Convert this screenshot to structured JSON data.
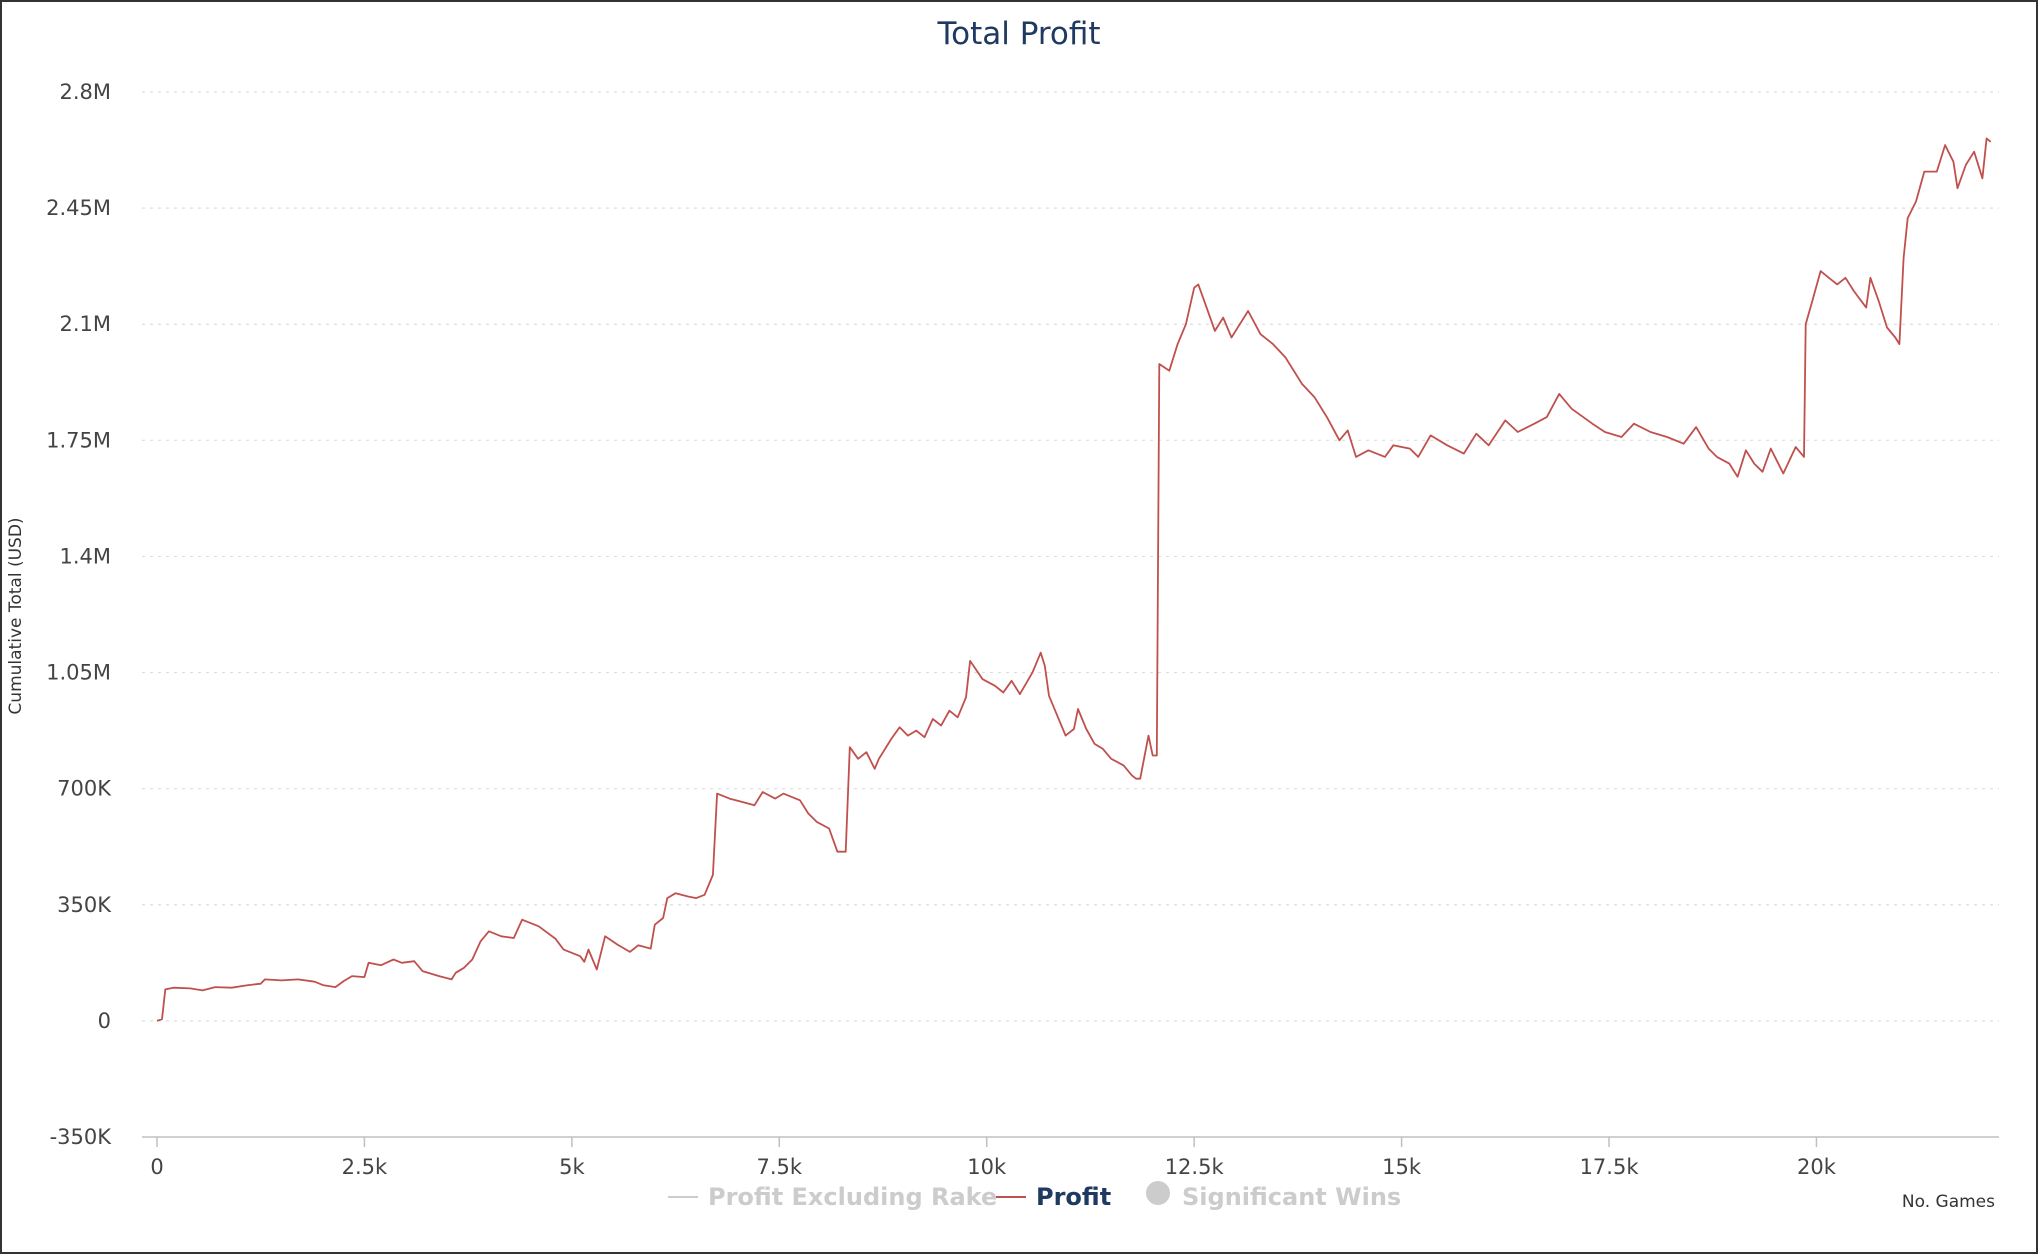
{
  "chart_data": {
    "type": "line",
    "title": "Total Profit",
    "xlabel": "No. Games",
    "ylabel": "Cumulative Total (USD)",
    "xlim": [
      0,
      22200
    ],
    "ylim": [
      -350000,
      2800000
    ],
    "x_ticks": [
      0,
      2500,
      5000,
      7500,
      10000,
      12500,
      15000,
      17500,
      20000
    ],
    "x_tick_labels": [
      "0",
      "2.5k",
      "5k",
      "7.5k",
      "10k",
      "12.5k",
      "15k",
      "17.5k",
      "20k"
    ],
    "y_ticks": [
      -350000,
      0,
      350000,
      700000,
      1050000,
      1400000,
      1750000,
      2100000,
      2450000,
      2800000
    ],
    "y_tick_labels": [
      "-350K",
      "0",
      "350K",
      "700K",
      "1.05M",
      "1.4M",
      "1.75M",
      "2.1M",
      "2.45M",
      "2.8M"
    ],
    "grid": "horizontal dotted",
    "legend_position": "bottom-center",
    "legend": [
      {
        "label": "Profit Excluding Rake",
        "color": "#cccccc",
        "marker": "line",
        "active": false
      },
      {
        "label": "Profit",
        "color": "#c0504d",
        "marker": "line",
        "active": true
      },
      {
        "label": "Significant Wins",
        "color": "#cccccc",
        "marker": "circle",
        "active": false
      }
    ],
    "series": [
      {
        "name": "Profit",
        "color": "#c0504d",
        "points": [
          [
            0,
            0
          ],
          [
            60,
            5000
          ],
          [
            100,
            95000
          ],
          [
            200,
            100000
          ],
          [
            400,
            98000
          ],
          [
            550,
            92000
          ],
          [
            700,
            102000
          ],
          [
            900,
            100000
          ],
          [
            1100,
            108000
          ],
          [
            1250,
            112000
          ],
          [
            1300,
            125000
          ],
          [
            1500,
            122000
          ],
          [
            1700,
            125000
          ],
          [
            1900,
            118000
          ],
          [
            2000,
            108000
          ],
          [
            2150,
            102000
          ],
          [
            2250,
            120000
          ],
          [
            2350,
            135000
          ],
          [
            2500,
            132000
          ],
          [
            2550,
            175000
          ],
          [
            2700,
            168000
          ],
          [
            2850,
            185000
          ],
          [
            2950,
            175000
          ],
          [
            3100,
            180000
          ],
          [
            3200,
            150000
          ],
          [
            3400,
            135000
          ],
          [
            3550,
            125000
          ],
          [
            3600,
            145000
          ],
          [
            3700,
            160000
          ],
          [
            3800,
            185000
          ],
          [
            3900,
            240000
          ],
          [
            4000,
            270000
          ],
          [
            4150,
            255000
          ],
          [
            4300,
            250000
          ],
          [
            4400,
            305000
          ],
          [
            4600,
            285000
          ],
          [
            4800,
            248000
          ],
          [
            4900,
            215000
          ],
          [
            5100,
            195000
          ],
          [
            5150,
            178000
          ],
          [
            5200,
            215000
          ],
          [
            5300,
            155000
          ],
          [
            5400,
            255000
          ],
          [
            5550,
            230000
          ],
          [
            5700,
            208000
          ],
          [
            5800,
            228000
          ],
          [
            5950,
            218000
          ],
          [
            6000,
            290000
          ],
          [
            6100,
            310000
          ],
          [
            6150,
            370000
          ],
          [
            6250,
            385000
          ],
          [
            6400,
            375000
          ],
          [
            6500,
            370000
          ],
          [
            6600,
            380000
          ],
          [
            6700,
            440000
          ],
          [
            6750,
            685000
          ],
          [
            6900,
            670000
          ],
          [
            7050,
            660000
          ],
          [
            7200,
            650000
          ],
          [
            7300,
            690000
          ],
          [
            7450,
            670000
          ],
          [
            7550,
            685000
          ],
          [
            7750,
            665000
          ],
          [
            7850,
            625000
          ],
          [
            7950,
            600000
          ],
          [
            8100,
            580000
          ],
          [
            8200,
            510000
          ],
          [
            8300,
            510000
          ],
          [
            8350,
            825000
          ],
          [
            8450,
            790000
          ],
          [
            8550,
            810000
          ],
          [
            8650,
            760000
          ],
          [
            8700,
            790000
          ],
          [
            8850,
            850000
          ],
          [
            8950,
            885000
          ],
          [
            9050,
            860000
          ],
          [
            9150,
            875000
          ],
          [
            9250,
            855000
          ],
          [
            9350,
            910000
          ],
          [
            9450,
            890000
          ],
          [
            9550,
            935000
          ],
          [
            9650,
            915000
          ],
          [
            9750,
            975000
          ],
          [
            9800,
            1085000
          ],
          [
            9950,
            1030000
          ],
          [
            10100,
            1010000
          ],
          [
            10200,
            990000
          ],
          [
            10300,
            1025000
          ],
          [
            10400,
            985000
          ],
          [
            10550,
            1050000
          ],
          [
            10650,
            1110000
          ],
          [
            10700,
            1070000
          ],
          [
            10750,
            980000
          ],
          [
            10850,
            920000
          ],
          [
            10950,
            860000
          ],
          [
            11050,
            880000
          ],
          [
            11100,
            940000
          ],
          [
            11200,
            880000
          ],
          [
            11300,
            835000
          ],
          [
            11400,
            820000
          ],
          [
            11500,
            790000
          ],
          [
            11650,
            770000
          ],
          [
            11750,
            740000
          ],
          [
            11800,
            730000
          ],
          [
            11850,
            730000
          ],
          [
            11950,
            860000
          ],
          [
            12000,
            800000
          ],
          [
            12050,
            800000
          ],
          [
            12080,
            1980000
          ],
          [
            12200,
            1960000
          ],
          [
            12300,
            2040000
          ],
          [
            12400,
            2100000
          ],
          [
            12500,
            2210000
          ],
          [
            12550,
            2220000
          ],
          [
            12650,
            2150000
          ],
          [
            12750,
            2080000
          ],
          [
            12850,
            2120000
          ],
          [
            12950,
            2060000
          ],
          [
            13050,
            2100000
          ],
          [
            13150,
            2140000
          ],
          [
            13300,
            2070000
          ],
          [
            13450,
            2040000
          ],
          [
            13600,
            2000000
          ],
          [
            13800,
            1920000
          ],
          [
            13950,
            1880000
          ],
          [
            14100,
            1820000
          ],
          [
            14250,
            1750000
          ],
          [
            14350,
            1780000
          ],
          [
            14450,
            1700000
          ],
          [
            14600,
            1720000
          ],
          [
            14800,
            1700000
          ],
          [
            14900,
            1735000
          ],
          [
            15100,
            1725000
          ],
          [
            15200,
            1700000
          ],
          [
            15350,
            1765000
          ],
          [
            15550,
            1735000
          ],
          [
            15750,
            1710000
          ],
          [
            15900,
            1770000
          ],
          [
            16050,
            1735000
          ],
          [
            16250,
            1810000
          ],
          [
            16400,
            1775000
          ],
          [
            16600,
            1800000
          ],
          [
            16750,
            1820000
          ],
          [
            16900,
            1890000
          ],
          [
            17050,
            1845000
          ],
          [
            17300,
            1800000
          ],
          [
            17450,
            1775000
          ],
          [
            17650,
            1760000
          ],
          [
            17800,
            1800000
          ],
          [
            18000,
            1775000
          ],
          [
            18200,
            1760000
          ],
          [
            18400,
            1740000
          ],
          [
            18550,
            1790000
          ],
          [
            18700,
            1725000
          ],
          [
            18800,
            1700000
          ],
          [
            18950,
            1680000
          ],
          [
            19050,
            1640000
          ],
          [
            19150,
            1720000
          ],
          [
            19250,
            1680000
          ],
          [
            19350,
            1655000
          ],
          [
            19450,
            1725000
          ],
          [
            19600,
            1650000
          ],
          [
            19750,
            1730000
          ],
          [
            19850,
            1700000
          ],
          [
            19870,
            2100000
          ],
          [
            19950,
            2170000
          ],
          [
            20050,
            2260000
          ],
          [
            20150,
            2240000
          ],
          [
            20250,
            2220000
          ],
          [
            20350,
            2240000
          ],
          [
            20450,
            2200000
          ],
          [
            20600,
            2150000
          ],
          [
            20650,
            2240000
          ],
          [
            20750,
            2170000
          ],
          [
            20850,
            2090000
          ],
          [
            20950,
            2060000
          ],
          [
            21000,
            2040000
          ],
          [
            21050,
            2300000
          ],
          [
            21100,
            2420000
          ],
          [
            21200,
            2470000
          ],
          [
            21300,
            2560000
          ],
          [
            21450,
            2560000
          ],
          [
            21550,
            2640000
          ],
          [
            21650,
            2590000
          ],
          [
            21700,
            2510000
          ],
          [
            21800,
            2580000
          ],
          [
            21900,
            2620000
          ],
          [
            22000,
            2540000
          ],
          [
            22050,
            2660000
          ],
          [
            22100,
            2650000
          ]
        ]
      }
    ]
  }
}
